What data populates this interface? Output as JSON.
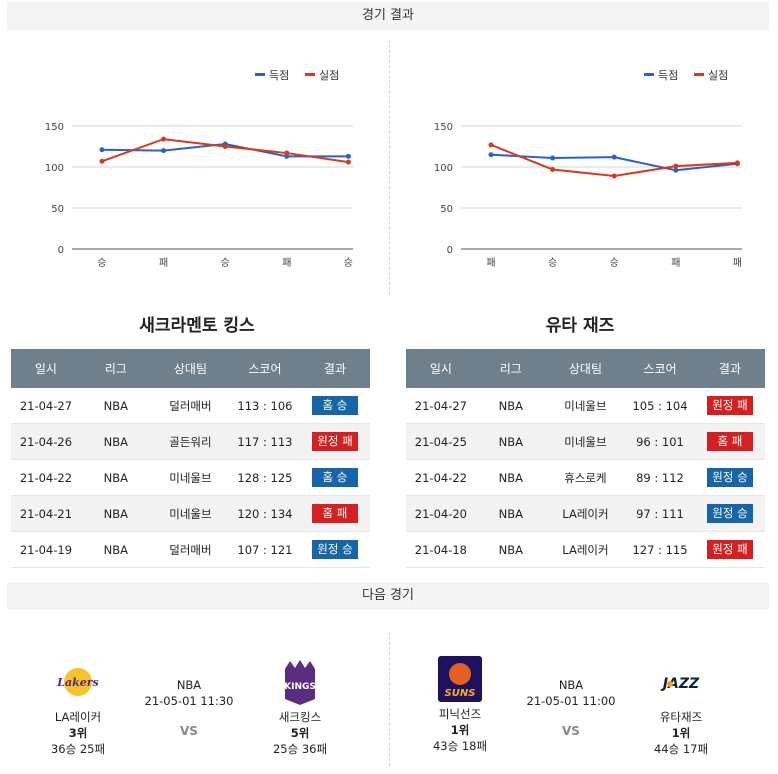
{
  "sections": {
    "results_title": "경기 결과",
    "next_title": "다음 경기"
  },
  "legend": {
    "score": "득점",
    "conceded": "실점"
  },
  "colors": {
    "score": "#2a62c8",
    "conceded": "#d63a1f",
    "win": "#1565a8",
    "lose": "#d42020"
  },
  "chart_data": [
    {
      "type": "line",
      "categories": [
        "승",
        "패",
        "승",
        "패",
        "승"
      ],
      "series": [
        {
          "name": "득점",
          "values": [
            121,
            120,
            128,
            113,
            113
          ]
        },
        {
          "name": "실점",
          "values": [
            107,
            134,
            125,
            117,
            106
          ]
        }
      ],
      "ylim": [
        0,
        150
      ],
      "yticks": [
        "150",
        "100",
        "50",
        "0"
      ],
      "grid": true,
      "legend_position": "top-right"
    },
    {
      "type": "line",
      "categories": [
        "패",
        "승",
        "승",
        "패",
        "패"
      ],
      "series": [
        {
          "name": "득점",
          "values": [
            115,
            111,
            112,
            96,
            104
          ]
        },
        {
          "name": "실점",
          "values": [
            127,
            97,
            89,
            101,
            105
          ]
        }
      ],
      "ylim": [
        0,
        150
      ],
      "yticks": [
        "150",
        "100",
        "50",
        "0"
      ],
      "grid": true,
      "legend_position": "top-right"
    }
  ],
  "teams": [
    {
      "name": "새크라멘토 킹스",
      "headers": [
        "일시",
        "리그",
        "상대팀",
        "스코어",
        "결과"
      ],
      "rows": [
        {
          "date": "21-04-27",
          "league": "NBA",
          "opponent": "덜러매버",
          "score": "113 : 106",
          "result": "홈 승",
          "win": true
        },
        {
          "date": "21-04-26",
          "league": "NBA",
          "opponent": "골든워리",
          "score": "117 : 113",
          "result": "원정 패",
          "win": false
        },
        {
          "date": "21-04-22",
          "league": "NBA",
          "opponent": "미네울브",
          "score": "128 : 125",
          "result": "홈 승",
          "win": true
        },
        {
          "date": "21-04-21",
          "league": "NBA",
          "opponent": "미네울브",
          "score": "120 : 134",
          "result": "홈 패",
          "win": false
        },
        {
          "date": "21-04-19",
          "league": "NBA",
          "opponent": "덜러매버",
          "score": "107 : 121",
          "result": "원정 승",
          "win": true
        }
      ]
    },
    {
      "name": "유타 재즈",
      "headers": [
        "일시",
        "리그",
        "상대팀",
        "스코어",
        "결과"
      ],
      "rows": [
        {
          "date": "21-04-27",
          "league": "NBA",
          "opponent": "미네울브",
          "score": "105 : 104",
          "result": "원정 패",
          "win": false
        },
        {
          "date": "21-04-25",
          "league": "NBA",
          "opponent": "미네울브",
          "score": "96 : 101",
          "result": "홈 패",
          "win": false
        },
        {
          "date": "21-04-22",
          "league": "NBA",
          "opponent": "휴스로케",
          "score": "89 : 112",
          "result": "원정 승",
          "win": true
        },
        {
          "date": "21-04-20",
          "league": "NBA",
          "opponent": "LA레이커",
          "score": "97 : 111",
          "result": "원정 승",
          "win": true
        },
        {
          "date": "21-04-18",
          "league": "NBA",
          "opponent": "LA레이커",
          "score": "127 : 115",
          "result": "원정 패",
          "win": false
        }
      ]
    }
  ],
  "next_games": [
    {
      "league": "NBA",
      "datetime": "21-05-01 11:30",
      "vs": "VS",
      "home": {
        "name": "LA레이커",
        "rank": "3위",
        "record": "36승 25패",
        "logo_text": "Lakers",
        "logo": "lakers-logo"
      },
      "away": {
        "name": "새크킹스",
        "rank": "5위",
        "record": "25승 36패",
        "logo_text": "KINGS",
        "logo": "kings-logo"
      }
    },
    {
      "league": "NBA",
      "datetime": "21-05-01 11:00",
      "vs": "VS",
      "home": {
        "name": "피닉선즈",
        "rank": "1위",
        "record": "43승 18패",
        "logo_text": "SUNS",
        "logo": "suns-logo"
      },
      "away": {
        "name": "유타재즈",
        "rank": "1위",
        "record": "44승 17패",
        "logo_text": "JAZZ",
        "logo": "jazz-logo"
      }
    }
  ]
}
